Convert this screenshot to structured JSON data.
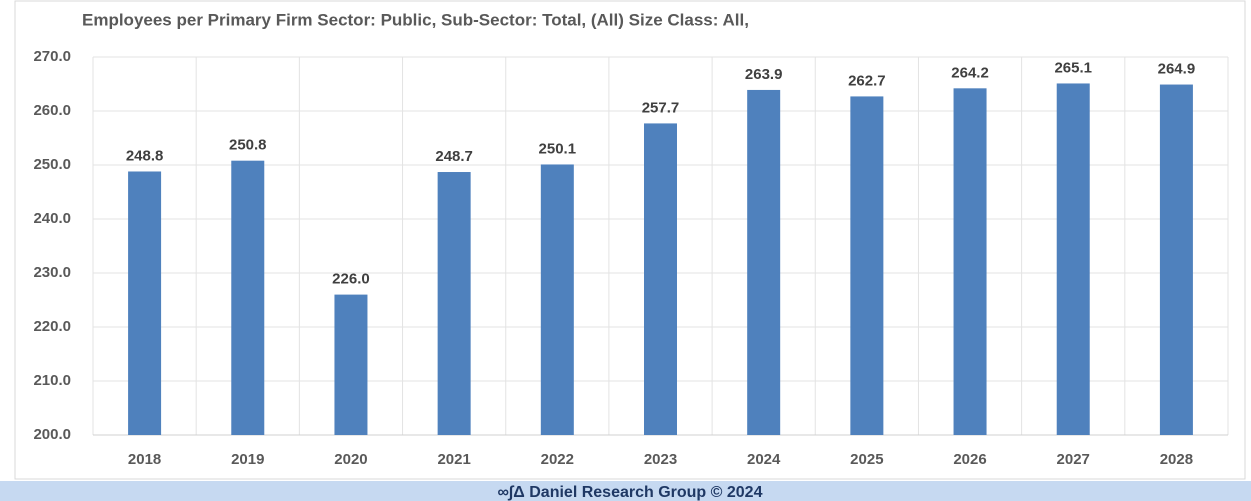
{
  "chart_data": {
    "type": "bar",
    "title": "Employees per Primary Firm Sector: Public, Sub-Sector: Total, (All) Size Class: All,",
    "categories": [
      "2018",
      "2019",
      "2020",
      "2021",
      "2022",
      "2023",
      "2024",
      "2025",
      "2026",
      "2027",
      "2028"
    ],
    "values": [
      248.8,
      250.8,
      226.0,
      248.7,
      250.1,
      257.7,
      263.9,
      262.7,
      264.2,
      265.1,
      264.9
    ],
    "value_labels": [
      "248.8",
      "250.8",
      "226.0",
      "248.7",
      "250.1",
      "257.7",
      "263.9",
      "262.7",
      "264.2",
      "265.1",
      "264.9"
    ],
    "color": "#4f81bd",
    "ylim": [
      200,
      270
    ],
    "yticks": [
      {
        "value": 200,
        "label": "200.0"
      },
      {
        "value": 210,
        "label": "210.0"
      },
      {
        "value": 220,
        "label": "220.0"
      },
      {
        "value": 230,
        "label": "230.0"
      },
      {
        "value": 240,
        "label": "240.0"
      },
      {
        "value": 250,
        "label": "250.0"
      },
      {
        "value": 260,
        "label": "260.0"
      },
      {
        "value": 270,
        "label": "270.0"
      }
    ],
    "grid": true
  },
  "footer": "∞∫Δ Daniel Research Group © 2024"
}
